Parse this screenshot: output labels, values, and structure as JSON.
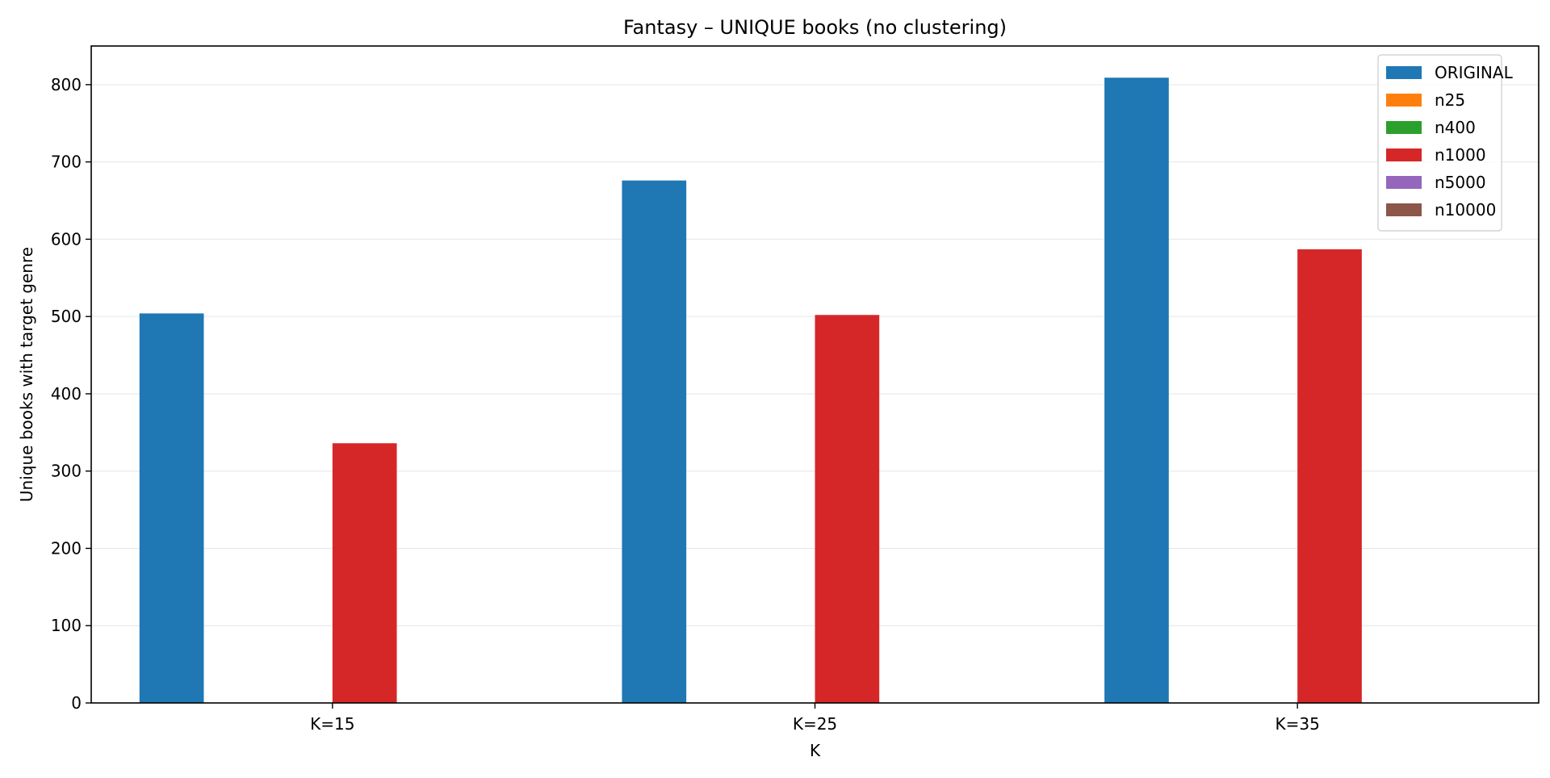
{
  "chart_data": {
    "type": "bar",
    "title": "Fantasy – UNIQUE books (no clustering)",
    "xlabel": "K",
    "ylabel": "Unique books with target genre",
    "categories": [
      "K=15",
      "K=25",
      "K=35"
    ],
    "ylim": [
      0,
      850
    ],
    "yticks": [
      0,
      100,
      200,
      300,
      400,
      500,
      600,
      700,
      800
    ],
    "grid": "y",
    "legend_position": "top-right",
    "series": [
      {
        "name": "ORIGINAL",
        "color": "#1f77b4",
        "values": [
          504,
          676,
          809
        ]
      },
      {
        "name": "n25",
        "color": "#ff7f0e",
        "values": [
          0,
          0,
          0
        ]
      },
      {
        "name": "n400",
        "color": "#2ca02c",
        "values": [
          0,
          0,
          0
        ]
      },
      {
        "name": "n1000",
        "color": "#d62728",
        "values": [
          336,
          502,
          587
        ]
      },
      {
        "name": "n5000",
        "color": "#9467bd",
        "values": [
          0,
          0,
          0
        ]
      },
      {
        "name": "n10000",
        "color": "#8c564b",
        "values": [
          0,
          0,
          0
        ]
      }
    ]
  }
}
